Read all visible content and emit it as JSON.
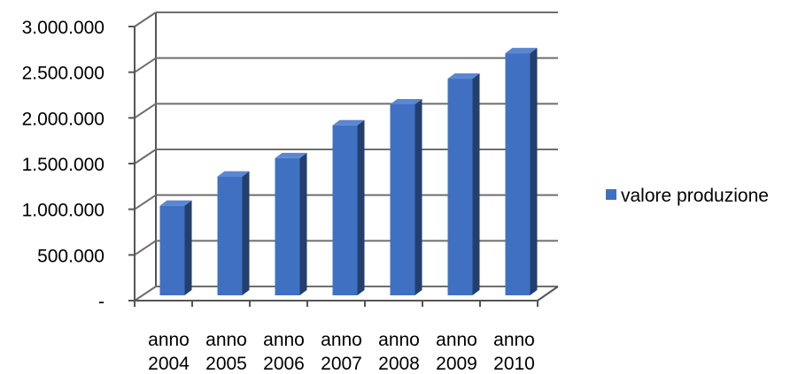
{
  "chart_data": {
    "type": "bar",
    "categories": [
      "anno 2004",
      "anno 2005",
      "anno 2006",
      "anno 2007",
      "anno 2008",
      "anno 2009",
      "anno 2010"
    ],
    "category_lines": [
      [
        "anno",
        "2004"
      ],
      [
        "anno",
        "2005"
      ],
      [
        "anno",
        "2006"
      ],
      [
        "anno",
        "2007"
      ],
      [
        "anno",
        "2008"
      ],
      [
        "anno",
        "2009"
      ],
      [
        "anno",
        "2010"
      ]
    ],
    "series": [
      {
        "name": "valore produzione",
        "values": [
          1000000,
          1320000,
          1520000,
          1880000,
          2110000,
          2390000,
          2670000
        ]
      }
    ],
    "yticks": [
      0,
      500000,
      1000000,
      1500000,
      2000000,
      2500000,
      3000000
    ],
    "ytick_labels": [
      "-",
      "500.000",
      "1.000.000",
      "1.500.000",
      "2.000.000",
      "2.500.000",
      "3.000.000"
    ],
    "ylim": [
      0,
      3000000
    ],
    "grid": true,
    "legend": "right",
    "style": "3d-column",
    "colors": {
      "bar_front": "#3f70c2",
      "bar_side": "#233f6e",
      "bar_top": "#5b86d2",
      "grid": "#6e6e6e",
      "axis": "#555555"
    }
  }
}
